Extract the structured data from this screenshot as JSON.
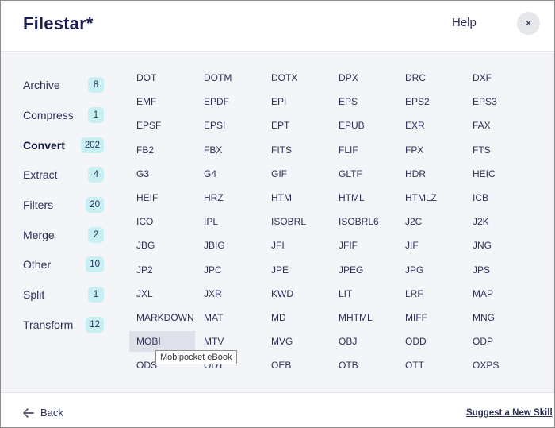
{
  "header": {
    "logo": "Filestar*",
    "help_label": "Help",
    "close_glyph": "×"
  },
  "sidebar": {
    "items": [
      {
        "label": "Archive",
        "count": "8",
        "active": false
      },
      {
        "label": "Compress",
        "count": "1",
        "active": false
      },
      {
        "label": "Convert",
        "count": "202",
        "active": true
      },
      {
        "label": "Extract",
        "count": "4",
        "active": false
      },
      {
        "label": "Filters",
        "count": "20",
        "active": false
      },
      {
        "label": "Merge",
        "count": "2",
        "active": false
      },
      {
        "label": "Other",
        "count": "10",
        "active": false
      },
      {
        "label": "Split",
        "count": "1",
        "active": false
      },
      {
        "label": "Transform",
        "count": "12",
        "active": false
      }
    ]
  },
  "formats": {
    "rows": [
      [
        "DOT",
        "DOTM",
        "DOTX",
        "DPX",
        "DRC",
        "DXF"
      ],
      [
        "EMF",
        "EPDF",
        "EPI",
        "EPS",
        "EPS2",
        "EPS3"
      ],
      [
        "EPSF",
        "EPSI",
        "EPT",
        "EPUB",
        "EXR",
        "FAX"
      ],
      [
        "FB2",
        "FBX",
        "FITS",
        "FLIF",
        "FPX",
        "FTS"
      ],
      [
        "G3",
        "G4",
        "GIF",
        "GLTF",
        "HDR",
        "HEIC"
      ],
      [
        "HEIF",
        "HRZ",
        "HTM",
        "HTML",
        "HTMLZ",
        "ICB"
      ],
      [
        "ICO",
        "IPL",
        "ISOBRL",
        "ISOBRL6",
        "J2C",
        "J2K"
      ],
      [
        "JBG",
        "JBIG",
        "JFI",
        "JFIF",
        "JIF",
        "JNG"
      ],
      [
        "JP2",
        "JPC",
        "JPE",
        "JPEG",
        "JPG",
        "JPS"
      ],
      [
        "JXL",
        "JXR",
        "KWD",
        "LIT",
        "LRF",
        "MAP"
      ],
      [
        "MARKDOWN",
        "MAT",
        "MD",
        "MHTML",
        "MIFF",
        "MNG"
      ],
      [
        "MOBI",
        "MTV",
        "MVG",
        "OBJ",
        "ODD",
        "ODP"
      ],
      [
        "ODS",
        "ODT",
        "OEB",
        "OTB",
        "OTT",
        "OXPS"
      ]
    ],
    "hovered": "MOBI"
  },
  "tooltip": {
    "text": "Mobipocket eBook"
  },
  "footer": {
    "back_label": "Back",
    "suggest_label": "Suggest a New Skill"
  }
}
